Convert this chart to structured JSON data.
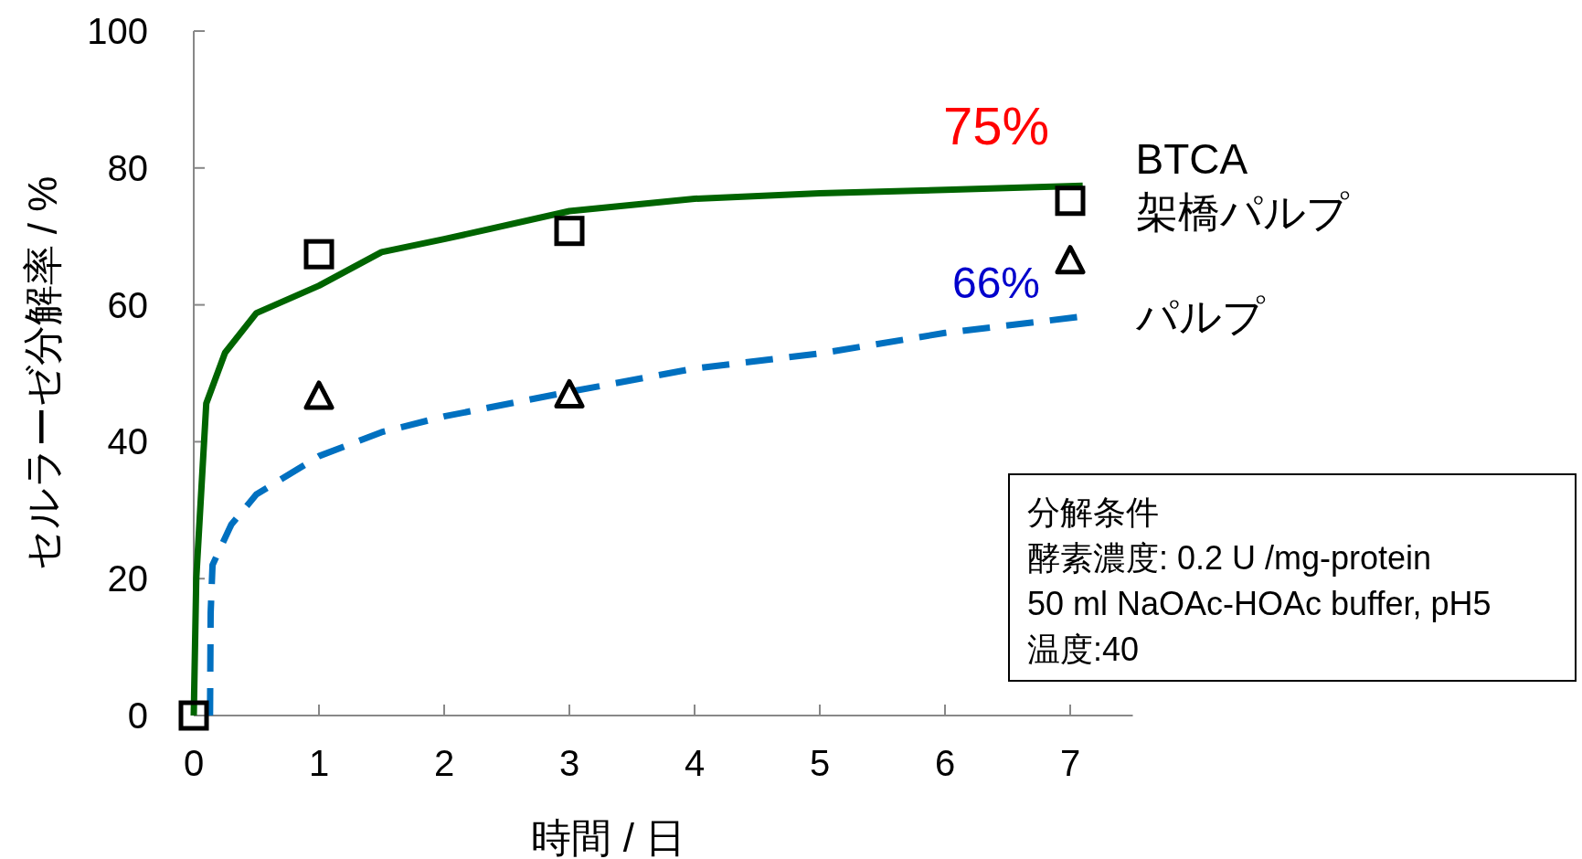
{
  "chart_data": {
    "type": "line",
    "xlabel": "時間 / 日",
    "ylabel": "セルラーゼ分解率 / %",
    "xlim": [
      0,
      7.5
    ],
    "ylim": [
      0,
      100
    ],
    "xticks": [
      0,
      1,
      2,
      3,
      4,
      5,
      6,
      7
    ],
    "yticks": [
      0,
      20,
      40,
      60,
      80,
      100
    ],
    "grid": false,
    "series": [
      {
        "name": "BTCA\n架橋パルプ",
        "color": "#006400",
        "line_style": "solid",
        "x": [
          0,
          0.02,
          0.1,
          0.25,
          0.5,
          1,
          1.5,
          2,
          3,
          4,
          5,
          6,
          7.1
        ],
        "values": [
          0,
          20,
          45.6,
          53,
          58.8,
          62.8,
          67.7,
          69.6,
          73.7,
          75.5,
          76.3,
          76.8,
          77.4
        ]
      },
      {
        "name": "パルプ",
        "color": "#0070c0",
        "line_style": "dashed",
        "x": [
          0.13,
          0.135,
          0.15,
          0.3,
          0.5,
          1,
          1.5,
          2,
          3,
          4,
          5,
          6,
          7.1
        ],
        "values": [
          0,
          15,
          22,
          27.9,
          32.3,
          37.9,
          41.4,
          43.7,
          47.3,
          50.7,
          52.9,
          55.9,
          58.3
        ]
      },
      {
        "type": "scatter",
        "marker": "square",
        "color": "#000000",
        "x": [
          0,
          1,
          3,
          7
        ],
        "values": [
          0,
          67.4,
          70.8,
          75.2
        ]
      },
      {
        "type": "scatter",
        "marker": "triangle",
        "color": "#000000",
        "x": [
          1,
          3,
          7
        ],
        "values": [
          46.6,
          46.8,
          66.4
        ]
      }
    ],
    "annotations": [
      "75%",
      "66%",
      "分解条件",
      "酵素濃度:  0.2 U /mg-protein",
      "50 ml NaOAc-HOAc buffer, pH5",
      "温度:40"
    ]
  }
}
